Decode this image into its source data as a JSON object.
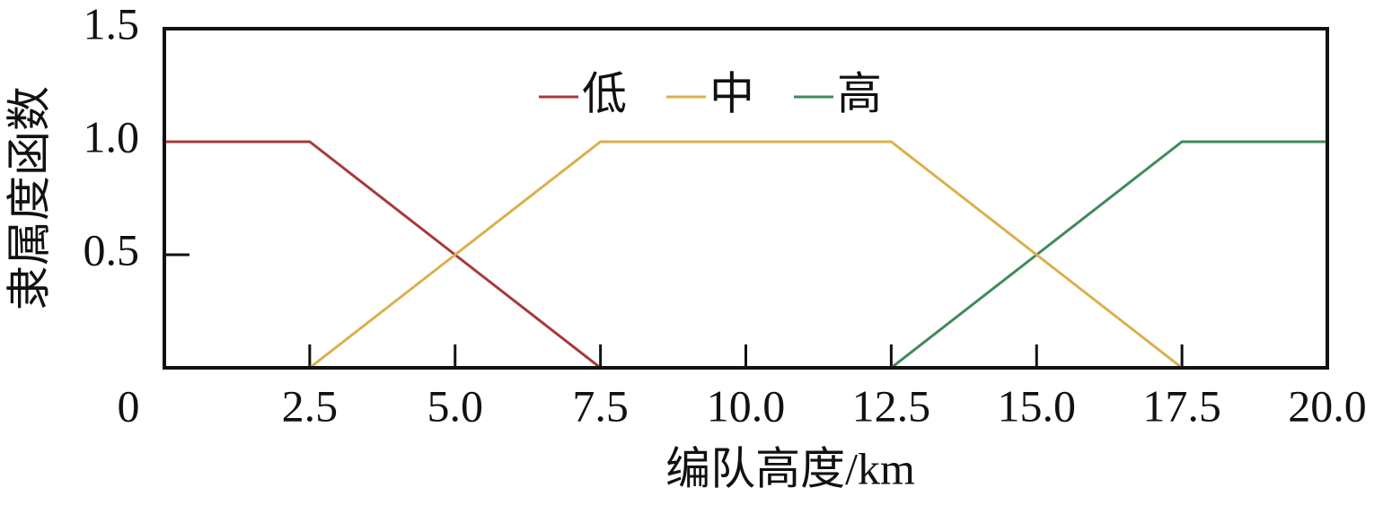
{
  "chart_data": {
    "type": "line",
    "xlabel": "编队高度/km",
    "ylabel": "隶属度函数",
    "x": [
      0,
      2.5,
      5,
      7.5,
      10,
      12.5,
      15,
      17.5,
      20
    ],
    "series": [
      {
        "name": "低",
        "color": "#a8383a",
        "values": [
          1,
          1,
          0.5,
          0,
          0,
          0,
          0,
          0,
          0
        ]
      },
      {
        "name": "中",
        "color": "#dcb04a",
        "values": [
          0,
          0,
          0.5,
          1,
          1,
          1,
          0.5,
          0,
          0
        ]
      },
      {
        "name": "高",
        "color": "#3f8a5c",
        "values": [
          0,
          0,
          0,
          0,
          0,
          0,
          0.5,
          1,
          1
        ]
      }
    ],
    "xlim": [
      0,
      20
    ],
    "ylim": [
      0,
      1.5
    ],
    "xticks": [
      0,
      2.5,
      {
        "value": 5,
        "label": "5.0"
      },
      7.5,
      {
        "value": 10,
        "label": "10.0"
      },
      12.5,
      {
        "value": 15,
        "label": "15.0"
      },
      17.5,
      {
        "value": 20,
        "label": "20.0"
      }
    ],
    "yticks": [
      0.5,
      {
        "value": 1,
        "label": "1.0"
      },
      1.5
    ],
    "legend": "top",
    "grid": false
  }
}
